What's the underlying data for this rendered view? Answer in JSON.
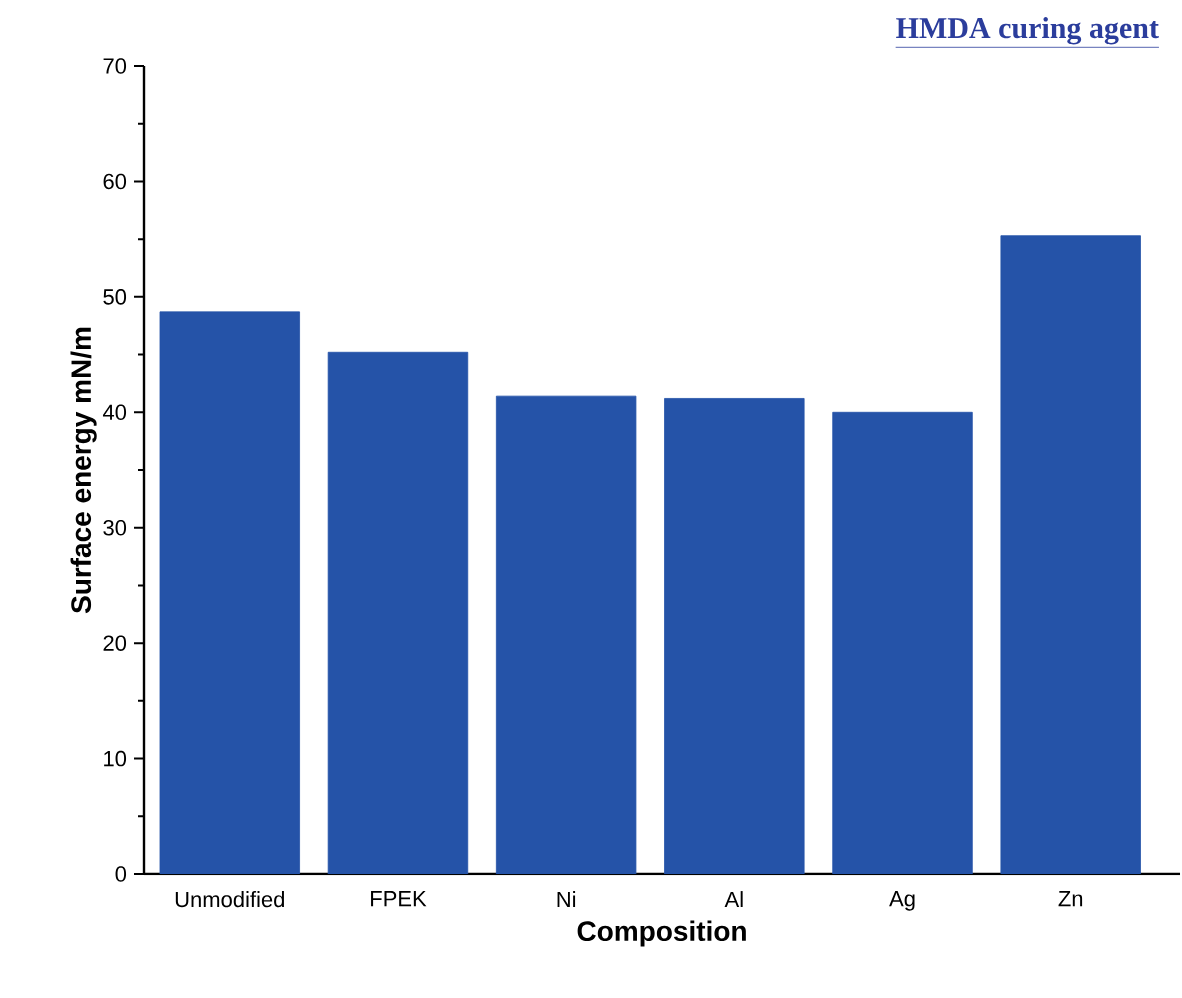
{
  "chart_data": {
    "type": "bar",
    "title": "HMDA curing agent",
    "xlabel": "Composition",
    "ylabel": "Surface energy mN/m",
    "categories": [
      "Unmodified",
      "FPEK",
      "Ni",
      "Al",
      "Ag",
      "Zn"
    ],
    "values": [
      48.7,
      45.2,
      41.4,
      41.2,
      40.0,
      55.3
    ],
    "color": "#2553a8",
    "ylim": [
      0,
      70
    ],
    "yticks": [
      0,
      10,
      20,
      30,
      40,
      50,
      60,
      70
    ],
    "grid": false
  }
}
